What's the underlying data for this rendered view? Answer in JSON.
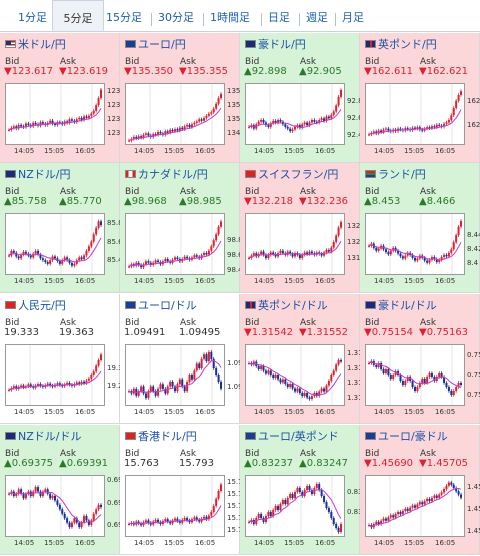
{
  "tabs": [
    "1分足",
    "5分足",
    "15分足",
    "30分足",
    "1時間足",
    "日足",
    "週足",
    "月足"
  ],
  "active_tab": 1,
  "bid_label": "Bid",
  "ask_label": "Ask",
  "x_ticks": [
    "14:05",
    "15:05",
    "16:05"
  ],
  "pairs": [
    {
      "name": "米ドル/円",
      "flag": "us",
      "trend": "down",
      "bid": "▼123.617",
      "ask": "▼123.619",
      "y_ticks": [
        "123.6",
        "123.4",
        "123.2",
        "123"
      ],
      "yrange": [
        122.85,
        123.7
      ],
      "series": [
        123.05,
        123.08,
        123.1,
        123.07,
        123.12,
        123.1,
        123.09,
        123.14,
        123.12,
        123.1,
        123.15,
        123.13,
        123.11,
        123.16,
        123.14,
        123.12,
        123.15,
        123.18,
        123.14,
        123.12,
        123.16,
        123.15,
        123.13,
        123.17,
        123.15,
        123.2,
        123.18,
        123.16,
        123.2,
        123.22,
        123.19,
        123.24,
        123.22,
        123.25,
        123.28,
        123.32,
        123.4,
        123.5,
        123.62
      ]
    },
    {
      "name": "ユーロ/円",
      "flag": "eu",
      "trend": "down",
      "bid": "▼135.350",
      "ask": "▼135.355",
      "y_ticks": [
        "135.4",
        "135.2",
        "135",
        "134.8"
      ],
      "yrange": [
        134.65,
        135.5
      ],
      "series": [
        134.7,
        134.72,
        134.75,
        134.73,
        134.76,
        134.74,
        134.78,
        134.8,
        134.77,
        134.75,
        134.79,
        134.78,
        134.82,
        134.8,
        134.78,
        134.83,
        134.81,
        134.85,
        134.83,
        134.86,
        134.84,
        134.88,
        134.86,
        134.9,
        134.92,
        134.89,
        134.93,
        134.95,
        134.97,
        135.0,
        134.98,
        135.02,
        135.05,
        135.08,
        135.1,
        135.15,
        135.22,
        135.3,
        135.36
      ]
    },
    {
      "name": "豪ドル/円",
      "flag": "au",
      "trend": "up",
      "bid": "▲92.898",
      "ask": "▲92.905",
      "y_ticks": [
        "92.8",
        "92.6",
        "92.4"
      ],
      "yrange": [
        92.3,
        93.0
      ],
      "series": [
        92.5,
        92.52,
        92.48,
        92.53,
        92.56,
        92.58,
        92.55,
        92.52,
        92.5,
        92.54,
        92.57,
        92.55,
        92.58,
        92.56,
        92.53,
        92.5,
        92.48,
        92.45,
        92.47,
        92.5,
        92.52,
        92.49,
        92.53,
        92.55,
        92.52,
        92.55,
        92.58,
        92.56,
        92.55,
        92.58,
        92.6,
        92.57,
        92.62,
        92.6,
        92.64,
        92.68,
        92.75,
        92.85,
        92.93
      ]
    },
    {
      "name": "英ポンド/円",
      "flag": "gb",
      "trend": "down",
      "bid": "▼162.611",
      "ask": "▼162.621",
      "y_ticks": [
        "162.5",
        "162"
      ],
      "yrange": [
        161.6,
        162.85
      ],
      "series": [
        161.8,
        161.83,
        161.86,
        161.82,
        161.88,
        161.85,
        161.9,
        161.92,
        161.88,
        161.86,
        161.9,
        161.87,
        161.92,
        161.9,
        161.88,
        161.93,
        161.91,
        161.89,
        161.94,
        161.92,
        161.95,
        161.9,
        161.88,
        161.92,
        161.95,
        161.93,
        161.97,
        161.95,
        162.0,
        161.98,
        161.96,
        162.02,
        162.05,
        162.1,
        162.2,
        162.35,
        162.5,
        162.62,
        162.7
      ]
    },
    {
      "name": "NZドル/円",
      "flag": "nz",
      "trend": "up",
      "bid": "▲85.758",
      "ask": "▲85.770",
      "y_ticks": [
        "85.8",
        "85.6",
        "85.4"
      ],
      "yrange": [
        85.25,
        85.9
      ],
      "series": [
        85.45,
        85.5,
        85.48,
        85.44,
        85.42,
        85.46,
        85.49,
        85.47,
        85.45,
        85.43,
        85.47,
        85.5,
        85.46,
        85.42,
        85.4,
        85.38,
        85.36,
        85.4,
        85.44,
        85.42,
        85.39,
        85.36,
        85.4,
        85.43,
        85.4,
        85.37,
        85.34,
        85.36,
        85.4,
        85.43,
        85.41,
        85.45,
        85.5,
        85.55,
        85.6,
        85.68,
        85.75,
        85.82,
        85.78
      ]
    },
    {
      "name": "カナダドル/円",
      "flag": "ca",
      "trend": "up",
      "bid": "▲98.968",
      "ask": "▲98.985",
      "y_ticks": [
        "98.8",
        "98.6",
        "98.4"
      ],
      "yrange": [
        98.35,
        99.15
      ],
      "series": [
        98.45,
        98.48,
        98.46,
        98.5,
        98.47,
        98.44,
        98.48,
        98.52,
        98.5,
        98.47,
        98.5,
        98.53,
        98.51,
        98.48,
        98.52,
        98.55,
        98.52,
        98.5,
        98.54,
        98.57,
        98.55,
        98.52,
        98.55,
        98.58,
        98.56,
        98.54,
        98.57,
        98.6,
        98.58,
        98.56,
        98.6,
        98.63,
        98.61,
        98.66,
        98.72,
        98.8,
        98.88,
        98.98,
        99.05
      ]
    },
    {
      "name": "スイスフラン/円",
      "flag": "ch",
      "trend": "down",
      "bid": "▼132.218",
      "ask": "▼132.236",
      "y_ticks": [
        "132.2",
        "132",
        "131.8"
      ],
      "yrange": [
        131.6,
        132.35
      ],
      "series": [
        131.8,
        131.83,
        131.86,
        131.82,
        131.85,
        131.88,
        131.84,
        131.8,
        131.84,
        131.87,
        131.85,
        131.82,
        131.86,
        131.89,
        131.86,
        131.84,
        131.88,
        131.85,
        131.82,
        131.86,
        131.84,
        131.8,
        131.84,
        131.87,
        131.85,
        131.88,
        131.86,
        131.84,
        131.87,
        131.85,
        131.83,
        131.87,
        131.9,
        131.88,
        131.93,
        132.0,
        132.08,
        132.18,
        132.25
      ]
    },
    {
      "name": "ランド/円",
      "flag": "za",
      "trend": "up",
      "bid": "▲8.453",
      "ask": "▲8.466",
      "y_ticks": [
        "8.44",
        "8.42",
        "8.4"
      ],
      "yrange": [
        8.385,
        8.47
      ],
      "series": [
        8.425,
        8.428,
        8.422,
        8.418,
        8.421,
        8.425,
        8.42,
        8.416,
        8.413,
        8.418,
        8.422,
        8.418,
        8.414,
        8.41,
        8.407,
        8.411,
        8.415,
        8.412,
        8.408,
        8.404,
        8.407,
        8.411,
        8.408,
        8.404,
        8.401,
        8.405,
        8.409,
        8.406,
        8.402,
        8.405,
        8.409,
        8.412,
        8.41,
        8.415,
        8.42,
        8.43,
        8.44,
        8.452,
        8.46
      ]
    },
    {
      "name": "人民元/円",
      "flag": "cn",
      "trend": "flat",
      "bid": "19.333",
      "ask": "19.363",
      "y_ticks": [
        "19.3",
        "19.25"
      ],
      "yrange": [
        19.2,
        19.36
      ],
      "series": [
        19.24,
        19.245,
        19.25,
        19.243,
        19.248,
        19.252,
        19.247,
        19.25,
        19.255,
        19.25,
        19.246,
        19.252,
        19.256,
        19.251,
        19.248,
        19.253,
        19.257,
        19.252,
        19.249,
        19.254,
        19.258,
        19.253,
        19.25,
        19.255,
        19.259,
        19.254,
        19.251,
        19.256,
        19.26,
        19.256,
        19.262,
        19.258,
        19.265,
        19.27,
        19.28,
        19.29,
        19.305,
        19.32,
        19.335
      ]
    },
    {
      "name": "ユーロ/ドル",
      "flag": "eu",
      "trend": "flat",
      "bid": "1.09491",
      "ask": "1.09495",
      "y_ticks": [
        "1.096",
        "1.095"
      ],
      "yrange": [
        1.0942,
        1.0968
      ],
      "series": [
        1.0948,
        1.0947,
        1.0949,
        1.0946,
        1.0948,
        1.095,
        1.0947,
        1.0945,
        1.0948,
        1.095,
        1.0948,
        1.0946,
        1.0949,
        1.0951,
        1.0949,
        1.0947,
        1.095,
        1.0952,
        1.095,
        1.0948,
        1.0951,
        1.0953,
        1.095,
        1.0948,
        1.0952,
        1.0955,
        1.0953,
        1.0957,
        1.096,
        1.0958,
        1.0962,
        1.0964,
        1.0961,
        1.0965,
        1.0962,
        1.0958,
        1.0955,
        1.0952,
        1.0949
      ]
    },
    {
      "name": "英ポンド/ドル",
      "flag": "gb",
      "trend": "down",
      "bid": "▼1.31542",
      "ask": "▼1.31552",
      "y_ticks": [
        "1.316",
        "1.315",
        "1.314",
        "1.313"
      ],
      "yrange": [
        1.3125,
        1.3165
      ],
      "series": [
        1.3153,
        1.3152,
        1.3154,
        1.3151,
        1.3149,
        1.3151,
        1.3148,
        1.3146,
        1.3148,
        1.3145,
        1.3143,
        1.3145,
        1.3142,
        1.314,
        1.3142,
        1.3139,
        1.3137,
        1.3139,
        1.3136,
        1.3134,
        1.3136,
        1.3133,
        1.3131,
        1.3133,
        1.313,
        1.3129,
        1.3131,
        1.3133,
        1.3131,
        1.3134,
        1.3136,
        1.3134,
        1.3138,
        1.3141,
        1.3145,
        1.3148,
        1.3152,
        1.3155,
        1.3154
      ]
    },
    {
      "name": "豪ドル/ドル",
      "flag": "au",
      "trend": "down",
      "bid": "▼0.75154",
      "ask": "▼0.75163",
      "y_ticks": [
        "0.753",
        "0.752",
        "0.751"
      ],
      "yrange": [
        0.7505,
        0.7535
      ],
      "series": [
        0.7526,
        0.7527,
        0.7525,
        0.7524,
        0.7526,
        0.7523,
        0.7521,
        0.7523,
        0.752,
        0.7518,
        0.752,
        0.7522,
        0.752,
        0.7517,
        0.7515,
        0.7517,
        0.7519,
        0.7517,
        0.7514,
        0.7512,
        0.7514,
        0.7516,
        0.7518,
        0.7516,
        0.7519,
        0.7521,
        0.7519,
        0.7517,
        0.7519,
        0.7521,
        0.7519,
        0.7516,
        0.7514,
        0.7512,
        0.751,
        0.7512,
        0.7514,
        0.7516,
        0.7515
      ]
    },
    {
      "name": "NZドル/ドル",
      "flag": "nz",
      "trend": "up",
      "bid": "▲0.69375",
      "ask": "▲0.69391",
      "y_ticks": [
        "0.695",
        "0.694",
        "0.693"
      ],
      "yrange": [
        0.6925,
        0.6952
      ],
      "series": [
        0.6944,
        0.6945,
        0.6943,
        0.6944,
        0.6946,
        0.6944,
        0.6942,
        0.6944,
        0.6945,
        0.6943,
        0.6945,
        0.6947,
        0.6945,
        0.6943,
        0.6945,
        0.6946,
        0.6944,
        0.6942,
        0.6943,
        0.6941,
        0.6939,
        0.6937,
        0.6935,
        0.6933,
        0.6931,
        0.6929,
        0.6931,
        0.6933,
        0.6931,
        0.6929,
        0.6931,
        0.6934,
        0.6932,
        0.693,
        0.6932,
        0.6935,
        0.6937,
        0.6939,
        0.6938
      ]
    },
    {
      "name": "香港ドル/円",
      "flag": "hk",
      "trend": "flat",
      "bid": "15.763",
      "ask": "15.793",
      "y_ticks": [
        "15.78",
        "15.76",
        "15.74",
        "15.72",
        "15.7"
      ],
      "yrange": [
        15.69,
        15.79
      ],
      "series": [
        15.71,
        15.712,
        15.709,
        15.714,
        15.711,
        15.708,
        15.713,
        15.716,
        15.712,
        15.709,
        15.714,
        15.717,
        15.713,
        15.71,
        15.715,
        15.718,
        15.714,
        15.711,
        15.716,
        15.719,
        15.715,
        15.712,
        15.717,
        15.72,
        15.716,
        15.713,
        15.718,
        15.721,
        15.717,
        15.714,
        15.719,
        15.722,
        15.718,
        15.724,
        15.73,
        15.74,
        15.752,
        15.765,
        15.776
      ]
    },
    {
      "name": "ユーロ/英ポンド",
      "flag": "eu",
      "trend": "up",
      "bid": "▲0.83237",
      "ask": "▲0.83247",
      "y_ticks": [
        "0.834",
        "0.833"
      ],
      "yrange": [
        0.8318,
        0.8348
      ],
      "series": [
        0.8325,
        0.8326,
        0.8324,
        0.8327,
        0.8329,
        0.8327,
        0.8325,
        0.8328,
        0.833,
        0.8328,
        0.8331,
        0.8333,
        0.8331,
        0.8334,
        0.8336,
        0.8334,
        0.8337,
        0.8339,
        0.8337,
        0.834,
        0.8342,
        0.834,
        0.8338,
        0.8341,
        0.8343,
        0.8341,
        0.8339,
        0.8342,
        0.8344,
        0.8341,
        0.8338,
        0.8335,
        0.8332,
        0.833,
        0.8327,
        0.8324,
        0.8322,
        0.832,
        0.8324
      ]
    },
    {
      "name": "ユーロ/豪ドル",
      "flag": "eu",
      "trend": "down",
      "bid": "▼1.45690",
      "ask": "▼1.45705",
      "y_ticks": [
        "1.458",
        "1.456",
        "1.454"
      ],
      "yrange": [
        1.4535,
        1.459
      ],
      "series": [
        1.4545,
        1.4543,
        1.4546,
        1.4548,
        1.4546,
        1.4549,
        1.4551,
        1.4549,
        1.4552,
        1.4554,
        1.4552,
        1.4555,
        1.4557,
        1.4555,
        1.4558,
        1.456,
        1.4558,
        1.4561,
        1.4563,
        1.4561,
        1.4564,
        1.4566,
        1.4564,
        1.4567,
        1.4569,
        1.4567,
        1.457,
        1.4572,
        1.457,
        1.4573,
        1.4575,
        1.4578,
        1.4581,
        1.4584,
        1.4582,
        1.4579,
        1.4576,
        1.4573,
        1.457
      ]
    }
  ]
}
